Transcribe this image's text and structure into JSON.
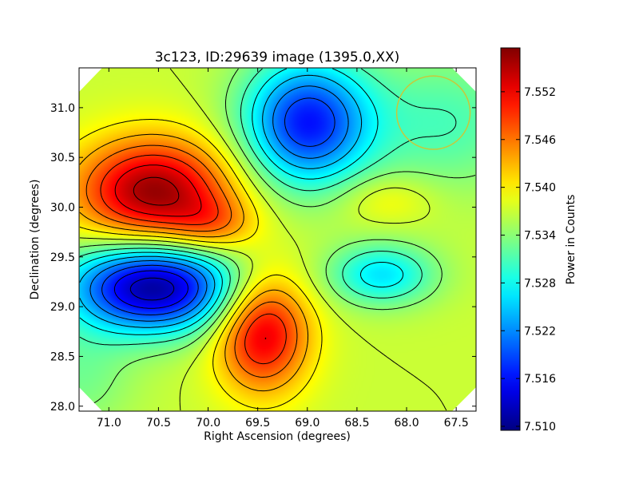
{
  "chart_data": {
    "type": "heatmap",
    "title": "3c123, ID:29639 image (1395.0,XX)",
    "xlabel": "Right Ascension (degrees)",
    "ylabel": "Declination (degrees)",
    "xlim": [
      71.3,
      67.3
    ],
    "ylim": [
      27.95,
      31.4
    ],
    "x_ticks": [
      {
        "value": 71.0,
        "label": "71.0"
      },
      {
        "value": 70.5,
        "label": "70.5"
      },
      {
        "value": 70.0,
        "label": "70.0"
      },
      {
        "value": 69.5,
        "label": "69.5"
      },
      {
        "value": 69.0,
        "label": "69.0"
      },
      {
        "value": 68.5,
        "label": "68.5"
      },
      {
        "value": 68.0,
        "label": "68.0"
      },
      {
        "value": 67.5,
        "label": "67.5"
      }
    ],
    "y_ticks": [
      {
        "value": 28.0,
        "label": "28.0"
      },
      {
        "value": 28.5,
        "label": "28.5"
      },
      {
        "value": 29.0,
        "label": "29.0"
      },
      {
        "value": 29.5,
        "label": "29.5"
      },
      {
        "value": 30.0,
        "label": "30.0"
      },
      {
        "value": 30.5,
        "label": "30.5"
      },
      {
        "value": 31.0,
        "label": "31.0"
      }
    ],
    "colorbar": {
      "label": "Power in Counts",
      "range": [
        7.5095,
        7.5575
      ],
      "ticks": [
        {
          "value": 7.51,
          "label": "7.510"
        },
        {
          "value": 7.516,
          "label": "7.516"
        },
        {
          "value": 7.522,
          "label": "7.522"
        },
        {
          "value": 7.528,
          "label": "7.528"
        },
        {
          "value": 7.534,
          "label": "7.534"
        },
        {
          "value": 7.54,
          "label": "7.540"
        },
        {
          "value": 7.546,
          "label": "7.546"
        },
        {
          "value": 7.552,
          "label": "7.552"
        }
      ],
      "colormap": "jet"
    },
    "base_level": 7.537,
    "features": [
      {
        "ra": 70.55,
        "dec": 30.15,
        "amp": 0.0195,
        "sigma_ra": 0.55,
        "sigma_dec": 0.38
      },
      {
        "ra": 70.55,
        "dec": 29.2,
        "amp": -0.0265,
        "sigma_ra": 0.6,
        "sigma_dec": 0.32
      },
      {
        "ra": 69.45,
        "dec": 28.75,
        "amp": 0.0165,
        "sigma_ra": 0.33,
        "sigma_dec": 0.42
      },
      {
        "ra": 69.0,
        "dec": 30.85,
        "amp": -0.0205,
        "sigma_ra": 0.45,
        "sigma_dec": 0.45
      },
      {
        "ra": 68.25,
        "dec": 29.32,
        "amp": -0.0105,
        "sigma_ra": 0.38,
        "sigma_dec": 0.22
      },
      {
        "ra": 68.2,
        "dec": 30.08,
        "amp": 0.0035,
        "sigma_ra": 0.35,
        "sigma_dec": 0.18
      },
      {
        "ra": 69.95,
        "dec": 29.82,
        "amp": 0.006,
        "sigma_ra": 0.3,
        "sigma_dec": 0.2
      },
      {
        "ra": 67.6,
        "dec": 30.85,
        "amp": -0.006,
        "sigma_ra": 0.6,
        "sigma_dec": 0.5
      },
      {
        "ra": 71.3,
        "dec": 28.3,
        "amp": -0.004,
        "sigma_ra": 0.4,
        "sigma_dec": 0.4
      }
    ],
    "contour_levels": [
      7.513,
      7.516,
      7.519,
      7.522,
      7.525,
      7.528,
      7.531,
      7.534,
      7.537,
      7.54,
      7.543,
      7.546,
      7.549,
      7.552,
      7.555
    ],
    "beam_circle": {
      "ra": 67.73,
      "dec": 30.95,
      "radius_deg": 0.37,
      "color": "#c8c83a"
    },
    "grid": false
  }
}
